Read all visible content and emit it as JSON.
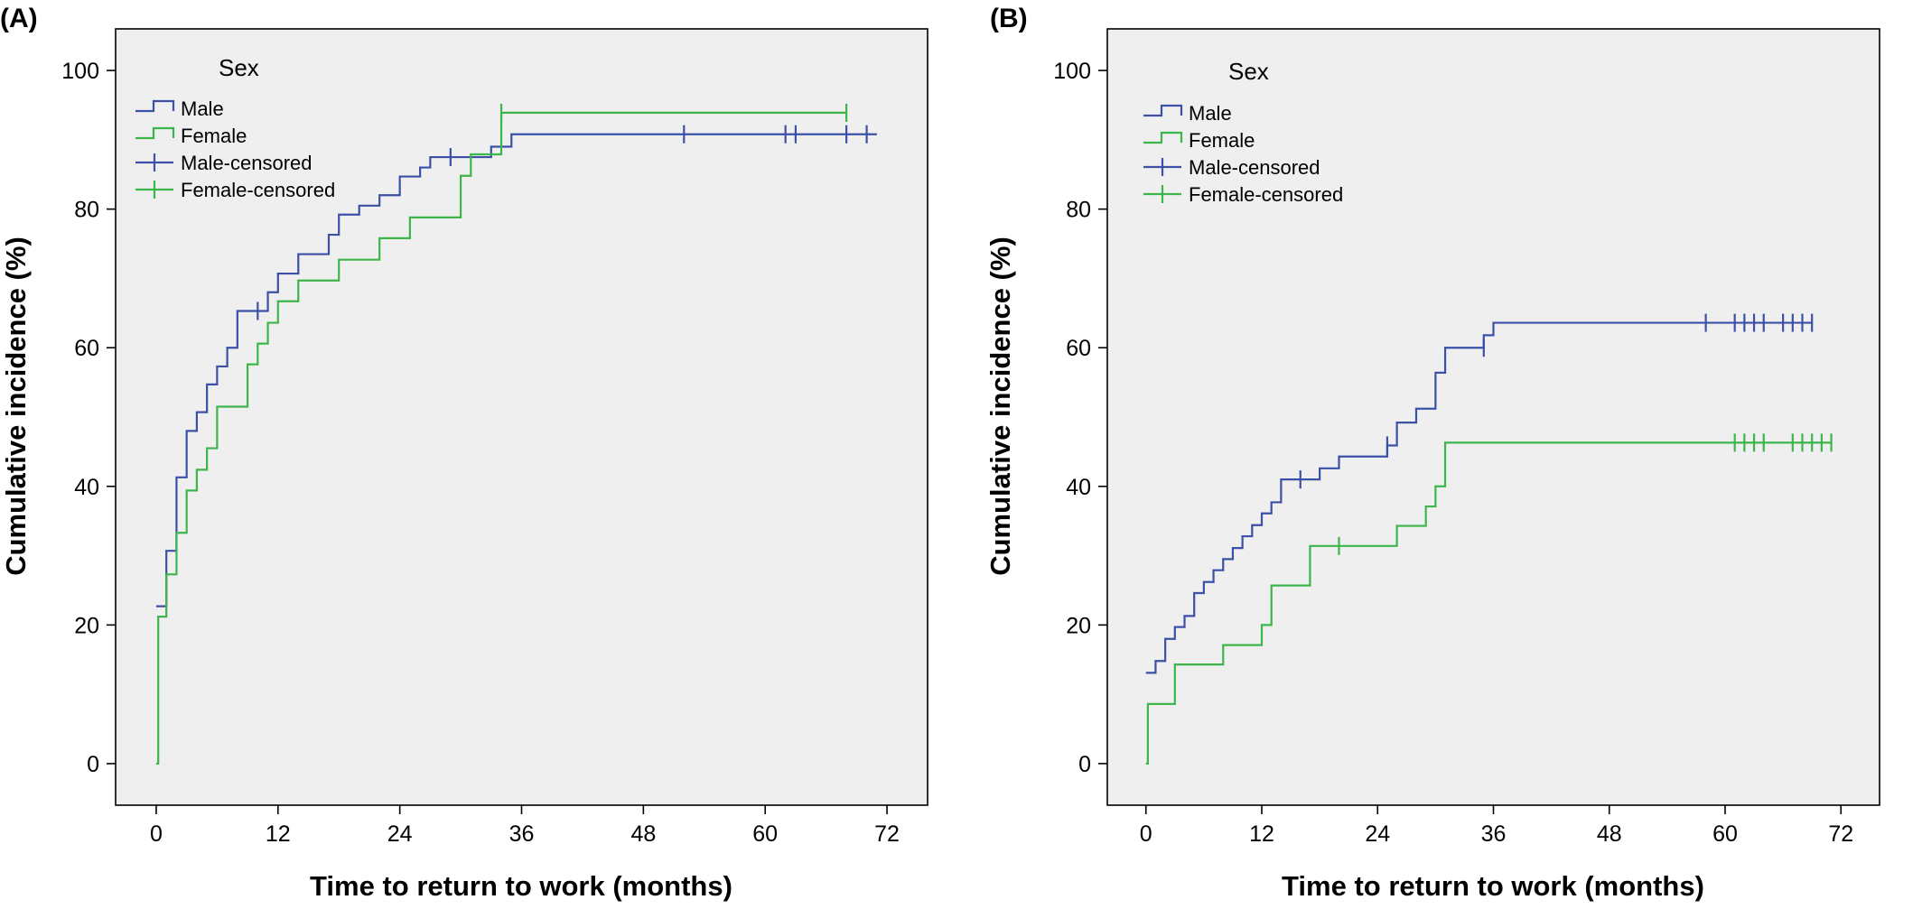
{
  "chart_data": [
    {
      "type": "line",
      "panel_label": "(A)",
      "xlabel": "Time to return to work (months)",
      "ylabel": "Cumulative incidence (%)",
      "xlim": [
        -4,
        76
      ],
      "ylim": [
        -6,
        106
      ],
      "xticks": [
        0,
        12,
        24,
        36,
        48,
        60,
        72
      ],
      "yticks": [
        0,
        20,
        40,
        60,
        80,
        100
      ],
      "grid": false,
      "legend": {
        "title": "Sex",
        "placement": "top-left",
        "entries": [
          "Male",
          "Female",
          "Male-censored",
          "Female-censored"
        ]
      },
      "series": [
        {
          "name": "Male",
          "color": "#3b50a6",
          "step": true,
          "x": [
            0,
            1,
            2,
            3,
            4,
            5,
            6,
            7,
            8,
            11,
            12,
            14,
            17,
            18,
            20,
            22,
            24,
            26,
            27,
            29,
            33,
            35,
            71
          ],
          "y": [
            22.7,
            30.7,
            41.3,
            48.0,
            50.7,
            54.7,
            57.3,
            60.0,
            65.3,
            68.0,
            70.7,
            73.5,
            76.3,
            79.2,
            80.5,
            82.0,
            84.7,
            86.0,
            87.5,
            87.5,
            89.0,
            90.8,
            90.8
          ],
          "censored": {
            "x": [
              10,
              29,
              52,
              62,
              63,
              68,
              70
            ],
            "y": [
              65.3,
              87.5,
              90.8,
              90.8,
              90.8,
              90.8,
              90.8
            ]
          }
        },
        {
          "name": "Female",
          "color": "#3cb54a",
          "step": true,
          "x": [
            0,
            0.2,
            1,
            2,
            3,
            4,
            5,
            6,
            9,
            10,
            11,
            12,
            14,
            18,
            22,
            25,
            30,
            31,
            34,
            68
          ],
          "y": [
            0,
            21.2,
            27.3,
            33.3,
            39.4,
            42.4,
            45.5,
            51.5,
            57.6,
            60.6,
            63.6,
            66.7,
            69.7,
            72.7,
            75.8,
            78.8,
            84.8,
            87.9,
            93.9,
            93.9
          ],
          "censored": {
            "x": [
              34,
              68
            ],
            "y": [
              93.9,
              93.9
            ]
          }
        }
      ]
    },
    {
      "type": "line",
      "panel_label": "(B)",
      "xlabel": "Time to return to work (months)",
      "ylabel": "Cumulative incidence (%)",
      "xlim": [
        -4,
        76
      ],
      "ylim": [
        -6,
        106
      ],
      "xticks": [
        0,
        12,
        24,
        36,
        48,
        60,
        72
      ],
      "yticks": [
        0,
        20,
        40,
        60,
        80,
        100
      ],
      "grid": false,
      "legend": {
        "title": "Sex",
        "placement": "top-left",
        "entries": [
          "Male",
          "Female",
          "Male-censored",
          "Female-censored"
        ]
      },
      "series": [
        {
          "name": "Male",
          "color": "#3b50a6",
          "step": true,
          "x": [
            0,
            1,
            2,
            3,
            4,
            5,
            6,
            7,
            8,
            9,
            10,
            11,
            12,
            13,
            14,
            16,
            18,
            20,
            25,
            26,
            28,
            30,
            31,
            35,
            36,
            37,
            69
          ],
          "y": [
            13.1,
            14.8,
            18.0,
            19.7,
            21.3,
            24.6,
            26.2,
            27.9,
            29.5,
            31.1,
            32.8,
            34.4,
            36.1,
            37.7,
            41.0,
            41.0,
            42.6,
            44.3,
            45.9,
            49.2,
            51.2,
            56.4,
            60.0,
            61.8,
            63.6,
            63.6,
            63.6
          ],
          "censored": {
            "x": [
              16,
              25,
              35,
              58,
              61,
              62,
              63,
              64,
              66,
              67,
              68,
              69
            ],
            "y": [
              41.0,
              45.9,
              60.0,
              63.6,
              63.6,
              63.6,
              63.6,
              63.6,
              63.6,
              63.6,
              63.6,
              63.6
            ]
          }
        },
        {
          "name": "Female",
          "color": "#3cb54a",
          "step": true,
          "x": [
            0,
            0.2,
            3,
            8,
            12,
            13,
            17,
            26,
            29,
            30,
            31,
            71
          ],
          "y": [
            0,
            8.6,
            14.3,
            17.1,
            20.0,
            25.7,
            31.4,
            34.3,
            37.1,
            40.0,
            46.3,
            46.3
          ],
          "censored": {
            "x": [
              20,
              61,
              62,
              63,
              64,
              67,
              68,
              69,
              70,
              71
            ],
            "y": [
              31.4,
              46.3,
              46.3,
              46.3,
              46.3,
              46.3,
              46.3,
              46.3,
              46.3,
              46.3
            ]
          }
        }
      ]
    }
  ]
}
